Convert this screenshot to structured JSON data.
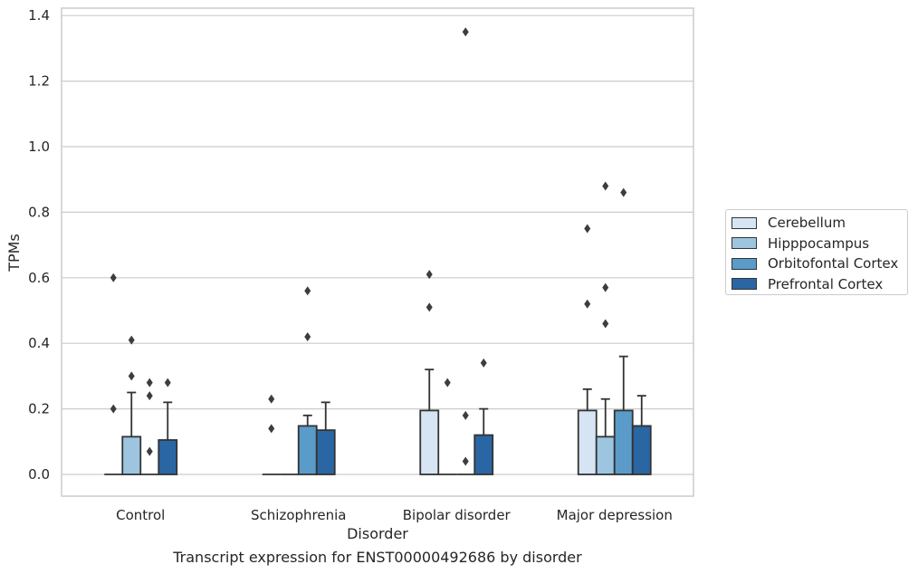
{
  "chart_data": {
    "type": "bar",
    "title": "Transcript expression for ENST00000492686 by disorder",
    "xlabel": "Disorder",
    "ylabel": "TPMs",
    "ylim": [
      -0.065,
      1.42
    ],
    "yticks": [
      "0.0",
      "0.2",
      "0.4",
      "0.6",
      "0.8",
      "1.0",
      "1.2",
      "1.4"
    ],
    "categories": [
      "Control",
      "Schizophrenia",
      "Bipolar disorder",
      "Major depression"
    ],
    "grid": true,
    "legend_position": "right",
    "series": [
      {
        "name": "Cerebellum",
        "color": "#d6e4f3",
        "values": [
          0.0,
          0.0,
          0.195,
          0.195
        ],
        "error_upper": [
          0.0,
          0.0,
          0.32,
          0.26
        ],
        "outliers": [
          [
            0.2,
            0.6
          ],
          [
            0.14,
            0.23
          ],
          [
            0.51,
            0.61
          ],
          [
            0.52,
            0.75
          ]
        ]
      },
      {
        "name": "Hipppocampus",
        "color": "#9dc5e0",
        "values": [
          0.115,
          0.0,
          0.0,
          0.115
        ],
        "error_upper": [
          0.25,
          0.0,
          0.0,
          0.23
        ],
        "outliers": [
          [
            0.3,
            0.41
          ],
          [],
          [
            0.28
          ],
          [
            0.46,
            0.57,
            0.88
          ]
        ]
      },
      {
        "name": "Orbitofontal Cortex",
        "color": "#5a9bc9",
        "values": [
          0.0,
          0.148,
          0.0,
          0.195
        ],
        "error_upper": [
          0.0,
          0.18,
          0.0,
          0.36
        ],
        "outliers": [
          [
            0.07,
            0.24,
            0.28
          ],
          [
            0.42,
            0.56
          ],
          [
            0.04,
            0.18,
            1.35
          ],
          [
            0.86
          ]
        ]
      },
      {
        "name": "Prefrontal Cortex",
        "color": "#2a66a3",
        "values": [
          0.105,
          0.135,
          0.12,
          0.148
        ],
        "error_upper": [
          0.22,
          0.22,
          0.2,
          0.24
        ],
        "outliers": [
          [
            0.28
          ],
          [],
          [
            0.34
          ],
          []
        ]
      }
    ]
  }
}
